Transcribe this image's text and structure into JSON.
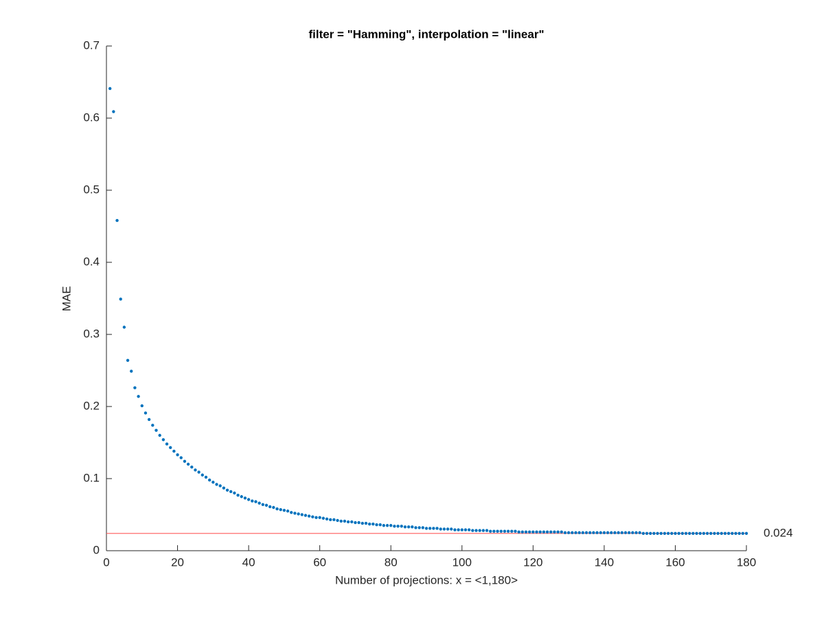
{
  "chart_data": {
    "type": "scatter",
    "title": "filter = \"Hamming\", interpolation = \"linear\"",
    "x_label": "Number of projections: x = <1,180>",
    "y_label": "MAE",
    "color": "#0072bd",
    "x": [
      1,
      2,
      3,
      4,
      5,
      6,
      7,
      8,
      9,
      10,
      11,
      12,
      13,
      14,
      15,
      16,
      17,
      18,
      19,
      20,
      21,
      22,
      23,
      24,
      25,
      26,
      27,
      28,
      29,
      30,
      31,
      32,
      33,
      34,
      35,
      36,
      37,
      38,
      39,
      40,
      41,
      42,
      43,
      44,
      45,
      46,
      47,
      48,
      49,
      50,
      51,
      52,
      53,
      54,
      55,
      56,
      57,
      58,
      59,
      60,
      61,
      62,
      63,
      64,
      65,
      66,
      67,
      68,
      69,
      70,
      71,
      72,
      73,
      74,
      75,
      76,
      77,
      78,
      79,
      80,
      81,
      82,
      83,
      84,
      85,
      86,
      87,
      88,
      89,
      90,
      91,
      92,
      93,
      94,
      95,
      96,
      97,
      98,
      99,
      100,
      101,
      102,
      103,
      104,
      105,
      106,
      107,
      108,
      109,
      110,
      111,
      112,
      113,
      114,
      115,
      116,
      117,
      118,
      119,
      120,
      121,
      122,
      123,
      124,
      125,
      126,
      127,
      128,
      129,
      130,
      131,
      132,
      133,
      134,
      135,
      136,
      137,
      138,
      139,
      140,
      141,
      142,
      143,
      144,
      145,
      146,
      147,
      148,
      149,
      150,
      151,
      152,
      153,
      154,
      155,
      156,
      157,
      158,
      159,
      160,
      161,
      162,
      163,
      164,
      165,
      166,
      167,
      168,
      169,
      170,
      171,
      172,
      173,
      174,
      175,
      176,
      177,
      178,
      179,
      180
    ],
    "values": [
      0.641,
      0.609,
      0.458,
      0.349,
      0.31,
      0.264,
      0.249,
      0.226,
      0.214,
      0.201,
      0.191,
      0.182,
      0.174,
      0.167,
      0.16,
      0.154,
      0.148,
      0.143,
      0.138,
      0.133,
      0.129,
      0.124,
      0.12,
      0.116,
      0.112,
      0.109,
      0.105,
      0.102,
      0.098,
      0.095,
      0.092,
      0.09,
      0.087,
      0.084,
      0.082,
      0.08,
      0.077,
      0.075,
      0.073,
      0.071,
      0.069,
      0.068,
      0.066,
      0.064,
      0.063,
      0.061,
      0.06,
      0.058,
      0.057,
      0.056,
      0.055,
      0.053,
      0.052,
      0.051,
      0.05,
      0.049,
      0.048,
      0.047,
      0.046,
      0.046,
      0.045,
      0.044,
      0.043,
      0.043,
      0.042,
      0.041,
      0.041,
      0.04,
      0.04,
      0.039,
      0.039,
      0.038,
      0.038,
      0.037,
      0.037,
      0.036,
      0.036,
      0.035,
      0.035,
      0.035,
      0.034,
      0.034,
      0.034,
      0.033,
      0.033,
      0.033,
      0.032,
      0.032,
      0.032,
      0.031,
      0.031,
      0.031,
      0.031,
      0.03,
      0.03,
      0.03,
      0.03,
      0.029,
      0.029,
      0.029,
      0.029,
      0.029,
      0.028,
      0.028,
      0.028,
      0.028,
      0.028,
      0.027,
      0.027,
      0.027,
      0.027,
      0.027,
      0.027,
      0.027,
      0.027,
      0.026,
      0.026,
      0.026,
      0.026,
      0.026,
      0.026,
      0.026,
      0.026,
      0.026,
      0.026,
      0.026,
      0.026,
      0.026,
      0.025,
      0.025,
      0.025,
      0.025,
      0.025,
      0.025,
      0.025,
      0.025,
      0.025,
      0.025,
      0.025,
      0.025,
      0.025,
      0.025,
      0.025,
      0.025,
      0.025,
      0.025,
      0.025,
      0.025,
      0.025,
      0.025,
      0.024,
      0.024,
      0.024,
      0.024,
      0.024,
      0.024,
      0.024,
      0.024,
      0.024,
      0.024,
      0.024,
      0.024,
      0.024,
      0.024,
      0.024,
      0.024,
      0.024,
      0.024,
      0.024,
      0.024,
      0.024,
      0.024,
      0.024,
      0.024,
      0.024,
      0.024,
      0.024,
      0.024,
      0.024,
      0.024
    ],
    "reference_line": {
      "value": 0.024,
      "color": "#ff5a5a"
    },
    "xlim": [
      0,
      180
    ],
    "xticks": [
      0,
      20,
      40,
      60,
      80,
      100,
      120,
      140,
      160,
      180
    ],
    "ylim": [
      0,
      0.7
    ],
    "yticks": [
      0,
      0.1,
      0.2,
      0.3,
      0.4,
      0.5,
      0.6,
      0.7
    ]
  }
}
